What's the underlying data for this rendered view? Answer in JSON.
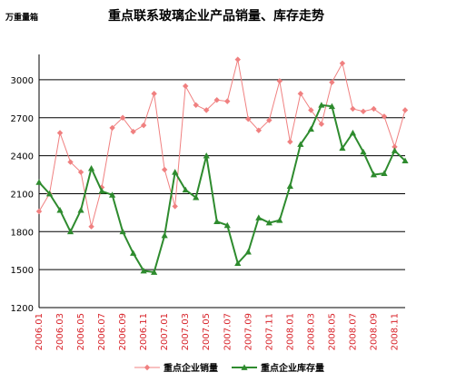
{
  "chart_data": {
    "type": "line",
    "title": "重点联系玻璃企业产品销量、库存走势",
    "unit_label": "万重量箱",
    "ylim": [
      1200,
      3200
    ],
    "yticks": [
      1200,
      1500,
      1800,
      2100,
      2400,
      2700,
      3000
    ],
    "grid": "horizontal",
    "legend_position": "bottom",
    "x": [
      "2006.01",
      "2006.02",
      "2006.03",
      "2006.04",
      "2006.05",
      "2006.06",
      "2006.07",
      "2006.08",
      "2006.09",
      "2006.10",
      "2006.11",
      "2006.12",
      "2007.01",
      "2007.02",
      "2007.03",
      "2007.04",
      "2007.05",
      "2007.06",
      "2007.07",
      "2007.08",
      "2007.09",
      "2007.10",
      "2007.11",
      "2007.12",
      "2008.01",
      "2008.02",
      "2008.03",
      "2008.04",
      "2008.05",
      "2008.06",
      "2008.07",
      "2008.08",
      "2008.09",
      "2008.10",
      "2008.11",
      "2008.12"
    ],
    "x_tick_labels": [
      "2006.01",
      "2006.03",
      "2006.05",
      "2006.07",
      "2006.09",
      "2006.11",
      "2007.01",
      "2007.03",
      "2007.05",
      "2007.07",
      "2007.09",
      "2007.11",
      "2008.01",
      "2008.03",
      "2008.05",
      "2008.07",
      "2008.09",
      "2008.11"
    ],
    "series": [
      {
        "name": "重点企业销量",
        "color": "#f08080",
        "marker": "diamond",
        "values": [
          1960,
          2100,
          2580,
          2350,
          2270,
          1840,
          2150,
          2620,
          2700,
          2590,
          2640,
          2890,
          2290,
          2000,
          2950,
          2800,
          2760,
          2840,
          2830,
          3160,
          2690,
          2600,
          2680,
          2990,
          2510,
          2890,
          2760,
          2650,
          2980,
          3130,
          2770,
          2750,
          2770,
          2710,
          2470,
          2760
        ]
      },
      {
        "name": "重点企业库存量",
        "color": "#2e8b2e",
        "marker": "triangle",
        "values": [
          2190,
          2100,
          1970,
          1800,
          1970,
          2300,
          2120,
          2090,
          1800,
          1630,
          1490,
          1480,
          1770,
          2270,
          2130,
          2070,
          2400,
          1880,
          1850,
          1550,
          1640,
          1910,
          1870,
          1890,
          2160,
          2490,
          2610,
          2800,
          2790,
          2460,
          2580,
          2430,
          2250,
          2260,
          2440,
          2360
        ]
      }
    ]
  }
}
